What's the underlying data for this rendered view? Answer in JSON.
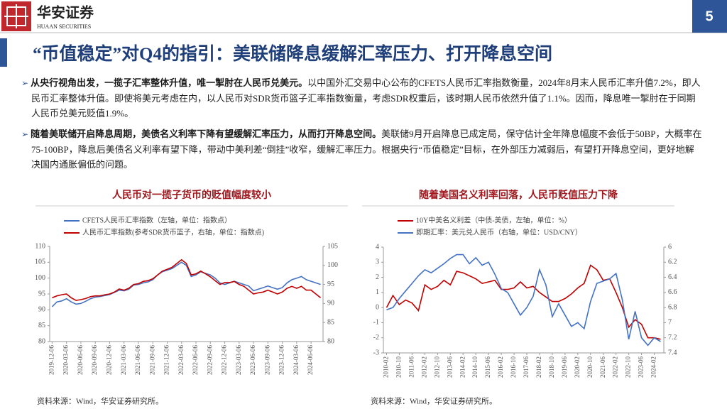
{
  "header": {
    "logo_cn": "华安证券",
    "logo_en": "HUAAN SECURITIES",
    "page_number": "5"
  },
  "title": "“币值稳定”对Q4的指引：美联储降息缓解汇率压力、打开降息空间",
  "bullets": [
    {
      "bold": "从央行视角出发，一揽子汇率整体升值，唯一掣肘在人民币兑美元。",
      "text": "以中国外汇交易中心公布的CFETS人民币汇率指数衡量，2024年8月末人民币汇率升值7.2%，即人民币汇率整体升值。即使将美元考虑在内，以人民币对SDR货币篮子汇率指数衡量，考虑SDR权重后，该时期人民币依然升值了1.1%。因而，降息唯一掣肘在于同期人民币兑美元贬值1.9%。"
    },
    {
      "bold": "随着美联储开启降息周期，美债名义利率下降有望缓解汇率压力，从而打开降息空间。",
      "text": "美联储9月开启降息已成定局，保守估计全年降息幅度不会低于50BP，大概率在75-100BP，降息后美债名义利率有望下降，带动中美利差“倒挂”收窄，缓解汇率压力。根据央行“币值稳定”目标，在外部压力减弱后，有望打开降息空间，更好地解决国内通胀偏低的问题。"
    }
  ],
  "chart_data": [
    {
      "type": "line",
      "title": "人民币对一揽子货币的贬值幅度较小",
      "categories": [
        "2019-12-06",
        null,
        null,
        "2020-03-06",
        null,
        null,
        "2020-06-06",
        null,
        null,
        "2020-09-06",
        null,
        null,
        "2020-12-06",
        null,
        null,
        "2021-03-06",
        null,
        null,
        "2021-06-06",
        null,
        null,
        "2021-09-06",
        null,
        null,
        "2021-12-06",
        null,
        null,
        "2022-03-06",
        null,
        null,
        "2022-06-06",
        null,
        null,
        "2022-09-06",
        null,
        null,
        "2022-12-06",
        null,
        null,
        "2023-03-06",
        null,
        null,
        "2023-06-06",
        null,
        null,
        "2023-09-06",
        null,
        null,
        "2023-12-06",
        null,
        null,
        "2024-03-06",
        null,
        null,
        "2024-06-06",
        null,
        null
      ],
      "series": [
        {
          "name": "CFETS人民币汇率指数（左轴，单位：指数点）",
          "color": "#4472c4",
          "values": [
            91.0,
            92.5,
            92.8,
            93.5,
            92.5,
            91.8,
            92.0,
            92.7,
            93.5,
            94.0,
            94.2,
            94.5,
            94.8,
            95.5,
            96.2,
            96.0,
            96.5,
            97.8,
            98.0,
            98.5,
            98.8,
            99.5,
            101.0,
            102.0,
            102.5,
            103.0,
            104.0,
            105.0,
            104.0,
            100.5,
            101.0,
            102.0,
            101.5,
            101.0,
            100.0,
            98.5,
            98.0,
            98.5,
            99.0,
            98.5,
            98.0,
            97.5,
            96.0,
            96.5,
            97.0,
            97.5,
            97.0,
            96.5,
            97.0,
            98.5,
            99.5,
            100.0,
            100.5,
            99.5,
            99.0,
            98.5,
            98.0
          ]
        },
        {
          "name": "人民币汇率指数(参考SDR货币篮子，右轴，单位：指数点)",
          "color": "#c00000",
          "axis": "y2",
          "values": [
            91.5,
            92.0,
            92.3,
            92.5,
            91.5,
            90.8,
            91.0,
            91.3,
            91.8,
            92.0,
            92.0,
            92.3,
            92.5,
            93.0,
            93.8,
            93.5,
            94.0,
            95.0,
            95.2,
            95.8,
            96.0,
            96.5,
            97.5,
            98.5,
            99.0,
            99.5,
            100.5,
            101.5,
            100.5,
            97.5,
            97.8,
            98.5,
            97.8,
            97.0,
            96.0,
            95.0,
            95.5,
            95.5,
            95.8,
            95.0,
            94.5,
            93.5,
            92.5,
            92.8,
            93.0,
            93.5,
            93.0,
            92.5,
            93.0,
            94.0,
            94.5,
            94.0,
            94.5,
            93.5,
            93.5,
            92.5,
            91.5
          ]
        }
      ],
      "ylim": [
        80,
        110
      ],
      "yticks": [
        80,
        85,
        90,
        95,
        100,
        105,
        110
      ],
      "y2lim": [
        80,
        105
      ],
      "y2ticks": [
        80,
        85,
        90,
        95,
        100,
        105
      ],
      "source": "资料来源：Wind，华安证券研究所。"
    },
    {
      "type": "line",
      "title": "随着美国名义利率回落，人民币贬值压力下降",
      "categories": [
        "2010-02",
        null,
        "2010-10",
        null,
        "2011-06",
        null,
        "2012-02",
        null,
        "2012-10",
        null,
        "2013-06",
        null,
        "2014-02",
        null,
        "2014-10",
        null,
        "2015-06",
        null,
        "2016-02",
        null,
        "2016-10",
        null,
        "2017-06",
        null,
        "2018-02",
        null,
        "2018-10",
        null,
        "2019-06",
        null,
        "2020-02",
        null,
        "2020-10",
        null,
        "2021-06",
        null,
        "2022-02",
        null,
        "2022-10",
        null,
        "2023-06",
        null,
        "2024-02",
        null
      ],
      "series": [
        {
          "name": "10Y中美名义利差（中债-美债，左轴，单位：%）",
          "color": "#c00000",
          "values": [
            0,
            0.8,
            0.2,
            0.5,
            0.3,
            -0.2,
            1.5,
            1.2,
            1.4,
            1.8,
            1.5,
            2.4,
            2.3,
            2.1,
            1.9,
            1.6,
            1.7,
            1.8,
            1.2,
            1.2,
            1.3,
            1.7,
            1.3,
            1.4,
            1.0,
            0.7,
            0.4,
            0.4,
            0.6,
            0.9,
            1.3,
            1.6,
            2.8,
            2.5,
            1.8,
            1.9,
            1.0,
            0.0,
            -1.3,
            -0.8,
            -1.1,
            -2.0,
            -2.0,
            -2.1
          ]
        },
        {
          "name": "即期汇率：美元兑人民币（右轴，单位：USD/CNY）",
          "color": "#4472c4",
          "axis": "y2",
          "values": [
            6.83,
            6.8,
            6.68,
            6.58,
            6.48,
            6.38,
            6.3,
            6.34,
            6.28,
            6.22,
            6.15,
            6.1,
            6.1,
            6.22,
            6.14,
            6.24,
            6.2,
            6.36,
            6.55,
            6.6,
            6.75,
            6.9,
            6.8,
            6.65,
            6.3,
            6.5,
            6.92,
            6.75,
            6.9,
            7.05,
            7.0,
            7.08,
            6.72,
            6.48,
            6.45,
            6.42,
            6.35,
            6.7,
            7.22,
            6.85,
            7.2,
            7.3,
            7.2,
            7.25
          ]
        }
      ],
      "ylim": [
        -3,
        4
      ],
      "yticks": [
        -3,
        -2,
        -1,
        0,
        1,
        2,
        3,
        4
      ],
      "y2lim": [
        7.4,
        6
      ],
      "y2ticks": [
        6,
        6.2,
        6.4,
        6.6,
        6.8,
        7,
        7.2,
        7.4
      ],
      "source": "资料来源：Wind，华安证券研究所。"
    }
  ]
}
